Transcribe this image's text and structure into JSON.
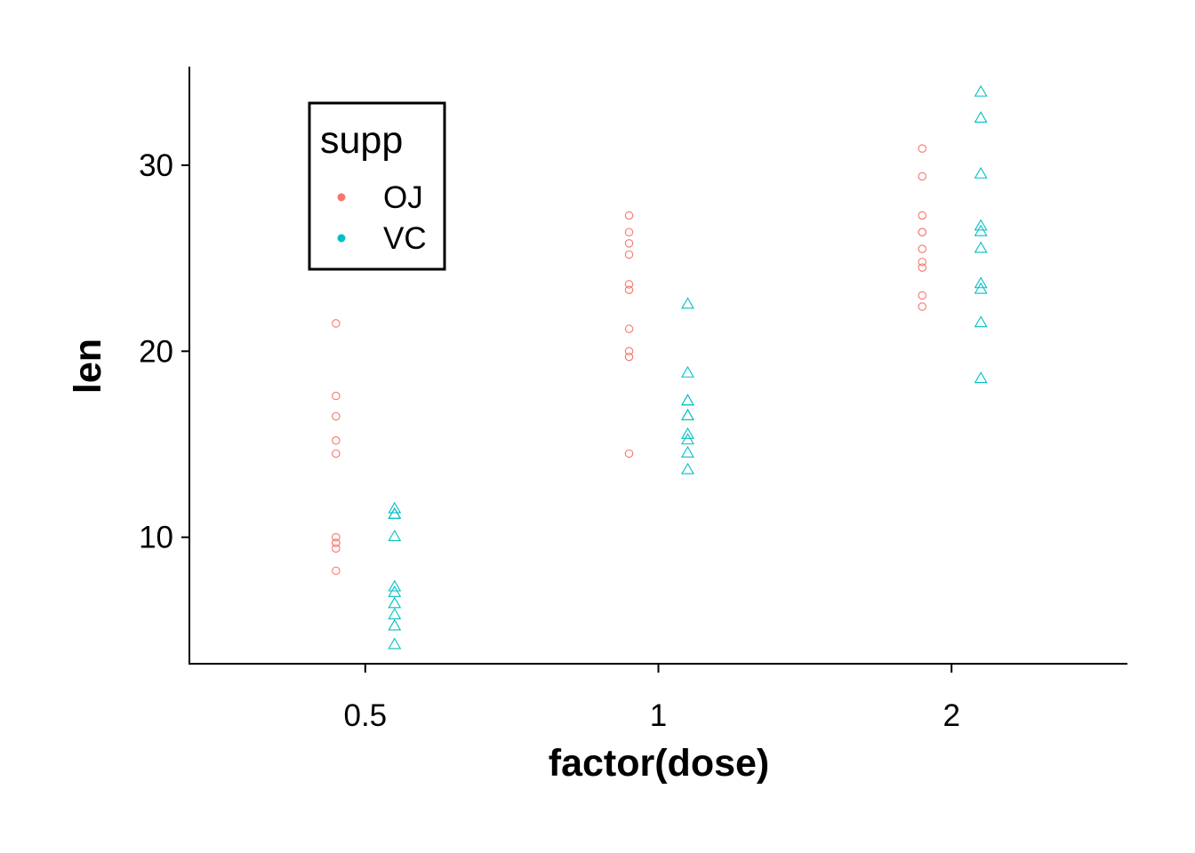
{
  "chart_data": {
    "type": "scatter",
    "title": "",
    "xlabel": "factor(dose)",
    "ylabel": "len",
    "categories": [
      "0.5",
      "1",
      "2"
    ],
    "ylim": [
      3.2,
      35.3
    ],
    "yticks": [
      10,
      20,
      30
    ],
    "grid": false,
    "legend": {
      "title": "supp",
      "placement": "top-left"
    },
    "series": [
      {
        "name": "OJ",
        "color": "#F8766D",
        "marker": "circle",
        "dodge": "left",
        "points": {
          "0.5": [
            15.2,
            21.5,
            17.6,
            9.7,
            14.5,
            10.0,
            8.2,
            9.4,
            16.5,
            9.7
          ],
          "1": [
            19.7,
            23.3,
            23.6,
            26.4,
            20.0,
            25.2,
            25.8,
            21.2,
            14.5,
            27.3
          ],
          "2": [
            25.5,
            26.4,
            22.4,
            24.5,
            24.8,
            30.9,
            26.4,
            27.3,
            29.4,
            23.0
          ]
        }
      },
      {
        "name": "VC",
        "color": "#00BFC4",
        "marker": "triangle",
        "dodge": "right",
        "points": {
          "0.5": [
            4.2,
            11.5,
            7.3,
            5.8,
            6.4,
            10.0,
            11.2,
            11.2,
            5.2,
            7.0
          ],
          "1": [
            16.5,
            16.5,
            15.2,
            17.3,
            22.5,
            17.3,
            13.6,
            14.5,
            18.8,
            15.5
          ],
          "2": [
            23.6,
            18.5,
            33.9,
            25.5,
            26.4,
            32.5,
            26.7,
            21.5,
            23.3,
            29.5
          ]
        }
      }
    ]
  }
}
